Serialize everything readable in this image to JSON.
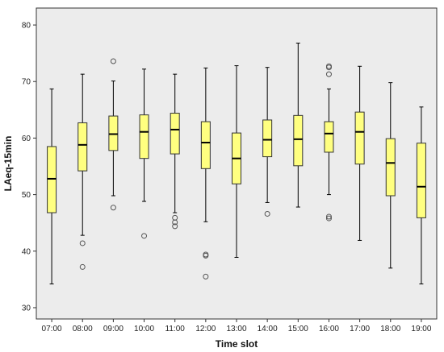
{
  "chart_data": {
    "type": "box",
    "xlabel": "Time slot",
    "ylabel": "LAeq-15min",
    "ylim": [
      28,
      83
    ],
    "yticks": [
      30,
      40,
      50,
      60,
      70,
      80
    ],
    "grid": false,
    "legend": "none",
    "colors": {
      "plot_background": "#ececec",
      "box_fill": "#ffff80",
      "box_stroke": "#333333",
      "median": "#000000",
      "whisker": "#000000",
      "outlier": "#555555"
    },
    "categories": [
      "07:00",
      "08:00",
      "09:00",
      "10:00",
      "11:00",
      "12:00",
      "13:00",
      "14:00",
      "15:00",
      "16:00",
      "17:00",
      "18:00",
      "19:00"
    ],
    "boxes": [
      {
        "category": "07:00",
        "whisker_low": 34.2,
        "q1": 46.8,
        "median": 52.8,
        "q3": 58.5,
        "whisker_high": 68.7,
        "outliers": []
      },
      {
        "category": "08:00",
        "whisker_low": 42.8,
        "q1": 54.2,
        "median": 58.8,
        "q3": 62.7,
        "whisker_high": 71.3,
        "outliers": [
          41.4,
          37.2
        ]
      },
      {
        "category": "09:00",
        "whisker_low": 49.8,
        "q1": 57.8,
        "median": 60.7,
        "q3": 63.9,
        "whisker_high": 70.1,
        "outliers": [
          73.6,
          47.7
        ]
      },
      {
        "category": "10:00",
        "whisker_low": 48.8,
        "q1": 56.4,
        "median": 61.1,
        "q3": 64.1,
        "whisker_high": 72.2,
        "outliers": [
          42.7
        ]
      },
      {
        "category": "11:00",
        "whisker_low": 46.8,
        "q1": 57.2,
        "median": 61.5,
        "q3": 64.4,
        "whisker_high": 71.3,
        "outliers": [
          45.9,
          45.1,
          44.4
        ]
      },
      {
        "category": "12:00",
        "whisker_low": 45.2,
        "q1": 54.6,
        "median": 59.2,
        "q3": 62.9,
        "whisker_high": 72.4,
        "outliers": [
          39.4,
          39.2,
          35.5
        ]
      },
      {
        "category": "13:00",
        "whisker_low": 38.9,
        "q1": 51.9,
        "median": 56.4,
        "q3": 60.9,
        "whisker_high": 72.8,
        "outliers": []
      },
      {
        "category": "14:00",
        "whisker_low": 48.6,
        "q1": 56.7,
        "median": 59.7,
        "q3": 63.2,
        "whisker_high": 72.5,
        "outliers": [
          46.6
        ]
      },
      {
        "category": "15:00",
        "whisker_low": 47.8,
        "q1": 55.1,
        "median": 59.8,
        "q3": 64.0,
        "whisker_high": 76.8,
        "outliers": []
      },
      {
        "category": "16:00",
        "whisker_low": 50.0,
        "q1": 57.5,
        "median": 60.8,
        "q3": 62.9,
        "whisker_high": 68.7,
        "outliers": [
          72.7,
          72.5,
          71.3,
          46.1,
          45.8
        ]
      },
      {
        "category": "17:00",
        "whisker_low": 41.9,
        "q1": 55.4,
        "median": 61.1,
        "q3": 64.6,
        "whisker_high": 72.7,
        "outliers": []
      },
      {
        "category": "18:00",
        "whisker_low": 37.0,
        "q1": 49.8,
        "median": 55.6,
        "q3": 59.9,
        "whisker_high": 69.8,
        "outliers": []
      },
      {
        "category": "19:00",
        "whisker_low": 34.2,
        "q1": 45.9,
        "median": 51.4,
        "q3": 59.1,
        "whisker_high": 65.5,
        "outliers": []
      }
    ]
  }
}
